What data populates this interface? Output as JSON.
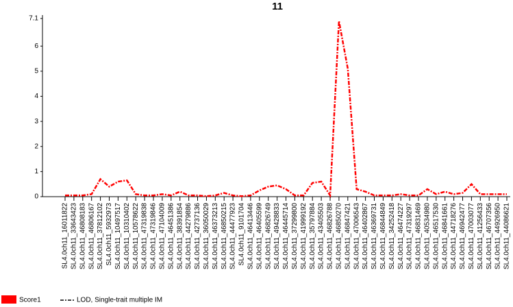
{
  "chart_data": {
    "type": "line",
    "title": "11",
    "categories": [
      "SL4.0ch11_16011822",
      "SL4.0ch11_33643423",
      "SL4.0ch11_46808183",
      "SL4.0ch11_46806167",
      "SL4.0ch11_37812102",
      "SL4.0ch11_5932973",
      "SL4.0ch11_10497517",
      "SL4.0ch11_10310402",
      "SL4.0ch11_10578622",
      "SL4.0ch11_47319838",
      "SL4.0ch11_47319846",
      "SL4.0ch11_47104009",
      "SL4.0ch11_46451386",
      "SL4.0ch11_38391854",
      "SL4.0ch11_44279886",
      "SL4.0ch11_42737136",
      "SL4.0ch11_36050029",
      "SL4.0ch11_46373213",
      "SL4.0ch11_46850215",
      "SL4.0ch11_44477923",
      "SL4.0ch11_9101704",
      "SL4.0ch11_46413446",
      "SL4.0ch11_46405599",
      "SL4.0ch11_46826749",
      "SL4.0ch11_49428833",
      "SL4.0ch11_46445714",
      "SL4.0ch11_37299800",
      "SL4.0ch11_41999192",
      "SL4.0ch11_35797884",
      "SL4.0ch11_43405503",
      "SL4.0ch11_46826788",
      "SL4.0ch11_46850270",
      "SL4.0ch11_46847421",
      "SL4.0ch11_47006543",
      "SL4.0ch11_46402867",
      "SL4.0ch11_46369731",
      "SL4.0ch11_46844849",
      "SL4.0ch11_34252418",
      "SL4.0ch11_46474227",
      "SL4.0ch11_47319297",
      "SL4.0ch11_46831469",
      "SL4.0ch11_40534980",
      "SL4.0ch11_46517530",
      "SL4.0ch11_46841661",
      "SL4.0ch11_44718276",
      "SL4.0ch11_46942477",
      "SL4.0ch11_47003077",
      "SL4.0ch11_41256433",
      "SL4.0ch11_46707356",
      "SL4.0ch11_44926950",
      "SL4.0ch11_44086621"
    ],
    "series": [
      {
        "name": "Score1",
        "color": "#ff0000",
        "values": [
          0.05,
          0.05,
          0.05,
          0.1,
          0.7,
          0.4,
          0.6,
          0.65,
          0.1,
          0.05,
          0.05,
          0.1,
          0.05,
          0.2,
          0.05,
          0.05,
          0.02,
          0.05,
          0.15,
          0.05,
          0.02,
          0.05,
          0.25,
          0.4,
          0.45,
          0.3,
          0.05,
          0.05,
          0.55,
          0.6,
          0.05,
          7.0,
          5.1,
          0.3,
          0.2,
          0.05,
          0.05,
          0.05,
          0.1,
          0.05,
          0.05,
          0.3,
          0.1,
          0.2,
          0.1,
          0.15,
          0.5,
          0.1,
          0.1,
          0.1,
          0.1
        ]
      }
    ],
    "line_legend": "LOD, Single-trait multiple IM",
    "ylim": [
      0,
      7.1
    ],
    "yticks": [
      0,
      1,
      2,
      3,
      4,
      5,
      6,
      7.1
    ]
  }
}
